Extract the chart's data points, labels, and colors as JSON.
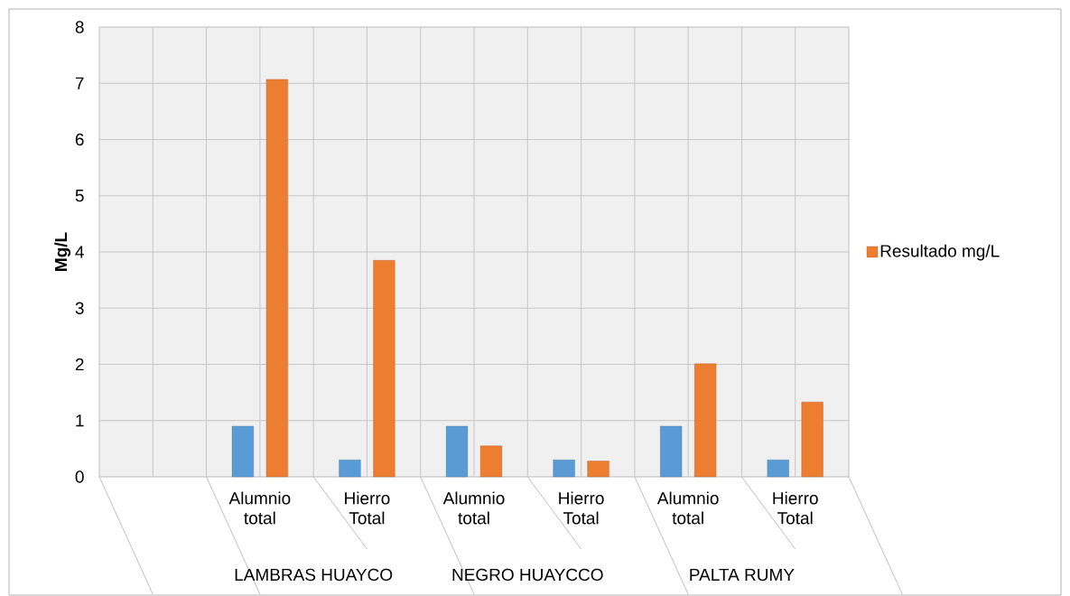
{
  "chart_data": {
    "type": "bar",
    "ylabel": "Mg/L",
    "categories": [
      null,
      "Alumnio total",
      "Hierro Total",
      "Alumnio total",
      "Hierro Total",
      "Alumnio total",
      "Hierro Total"
    ],
    "series": [
      {
        "color": "#5b9bd5",
        "values": [
          null,
          0.9,
          0.3,
          0.9,
          0.3,
          0.9,
          0.3
        ]
      },
      {
        "name": "Resultado mg/L",
        "color": "#ed7d31",
        "values": [
          null,
          7.07,
          3.85,
          0.55,
          0.28,
          2.01,
          1.33
        ]
      }
    ],
    "ylim": [
      0,
      8
    ],
    "yticks": [
      0,
      1,
      2,
      3,
      4,
      5,
      6,
      7,
      8
    ],
    "grid": true,
    "legend": "right",
    "annotations": [
      "LAMBRAS HUAYCO",
      "NEGRO HUAYCCO",
      "PALTA RUMY"
    ]
  }
}
